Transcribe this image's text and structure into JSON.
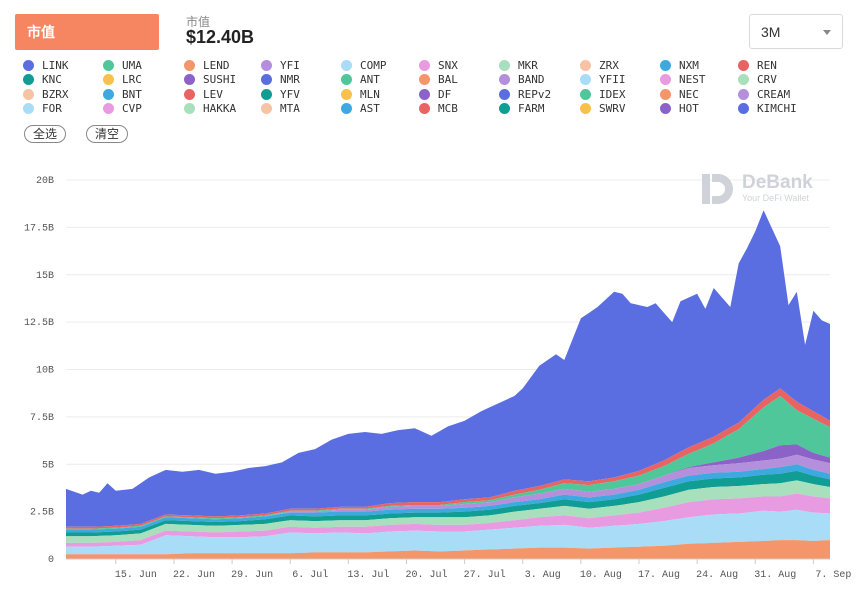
{
  "header": {
    "tab_label": "市值",
    "metric_label": "市值",
    "metric_value": "$12.40B",
    "range_value": "3M"
  },
  "buttons": {
    "select_all": "全选",
    "clear": "清空"
  },
  "watermark": {
    "title": "DeBank",
    "subtitle": "Your DeFi Wallet"
  },
  "legend": [
    {
      "name": "LINK",
      "color": "#5b6ee1"
    },
    {
      "name": "UMA",
      "color": "#4fc79b"
    },
    {
      "name": "LEND",
      "color": "#f4956a"
    },
    {
      "name": "YFI",
      "color": "#b48fdb"
    },
    {
      "name": "COMP",
      "color": "#a9dcf7"
    },
    {
      "name": "SNX",
      "color": "#e89be0"
    },
    {
      "name": "MKR",
      "color": "#a8dfbd"
    },
    {
      "name": "ZRX",
      "color": "#f6c3a4"
    },
    {
      "name": "NXM",
      "color": "#3ea9e0"
    },
    {
      "name": "REN",
      "color": "#e86462"
    },
    {
      "name": "KNC",
      "color": "#109d93"
    },
    {
      "name": "LRC",
      "color": "#f7c14a"
    },
    {
      "name": "SUSHI",
      "color": "#8b63c8"
    },
    {
      "name": "NMR",
      "color": "#5b6ee1"
    },
    {
      "name": "ANT",
      "color": "#4fc79b"
    },
    {
      "name": "BAL",
      "color": "#f4956a"
    },
    {
      "name": "BAND",
      "color": "#b48fdb"
    },
    {
      "name": "YFII",
      "color": "#a9dcf7"
    },
    {
      "name": "NEST",
      "color": "#e89be0"
    },
    {
      "name": "CRV",
      "color": "#a8dfbd"
    },
    {
      "name": "BZRX",
      "color": "#f6c3a4"
    },
    {
      "name": "BNT",
      "color": "#3ea9e0"
    },
    {
      "name": "LEV",
      "color": "#e86462"
    },
    {
      "name": "YFV",
      "color": "#109d93"
    },
    {
      "name": "MLN",
      "color": "#f7c14a"
    },
    {
      "name": "DF",
      "color": "#8b63c8"
    },
    {
      "name": "REPv2",
      "color": "#5b6ee1"
    },
    {
      "name": "IDEX",
      "color": "#4fc79b"
    },
    {
      "name": "NEC",
      "color": "#f4956a"
    },
    {
      "name": "CREAM",
      "color": "#b48fdb"
    },
    {
      "name": "FOR",
      "color": "#a9dcf7"
    },
    {
      "name": "CVP",
      "color": "#e89be0"
    },
    {
      "name": "HAKKA",
      "color": "#a8dfbd"
    },
    {
      "name": "MTA",
      "color": "#f6c3a4"
    },
    {
      "name": "AST",
      "color": "#3ea9e0"
    },
    {
      "name": "MCB",
      "color": "#e86462"
    },
    {
      "name": "FARM",
      "color": "#109d93"
    },
    {
      "name": "SWRV",
      "color": "#f7c14a"
    },
    {
      "name": "HOT",
      "color": "#8b63c8"
    },
    {
      "name": "KIMCHI",
      "color": "#5b6ee1"
    }
  ],
  "chart_data": {
    "type": "area",
    "stacked": true,
    "y_ticks": [
      "0",
      "2.5B",
      "5B",
      "7.5B",
      "10B",
      "12.5B",
      "15B",
      "17.5B",
      "20B"
    ],
    "ylim": [
      0,
      20
    ],
    "y_unit": "B",
    "x_ticks": [
      "15. Jun",
      "22. Jun",
      "29. Jun",
      "6. Jul",
      "13. Jul",
      "20. Jul",
      "27. Jul",
      "3. Aug",
      "10. Aug",
      "17. Aug",
      "24. Aug",
      "31. Aug",
      "7. Sep"
    ],
    "x_tick_days": [
      6,
      13,
      20,
      27,
      34,
      41,
      48,
      55,
      62,
      69,
      76,
      83,
      90
    ],
    "x_range_days": [
      0,
      92
    ],
    "x_start": "9. Jun",
    "total_days": [
      0,
      2,
      3,
      4,
      5,
      6,
      8,
      10,
      12,
      14,
      16,
      18,
      20,
      22,
      24,
      26,
      28,
      30,
      32,
      34,
      36,
      38,
      40,
      42,
      44,
      46,
      48,
      50,
      52,
      54,
      55,
      57,
      59,
      60,
      62,
      63,
      64,
      66,
      67,
      68,
      70,
      71,
      73,
      74,
      76,
      77,
      78,
      80,
      81,
      82,
      83,
      84,
      86,
      87,
      88,
      89,
      90,
      91,
      92
    ],
    "total": [
      3.7,
      3.4,
      3.6,
      3.5,
      4.0,
      3.6,
      3.7,
      4.3,
      4.7,
      4.6,
      4.7,
      4.5,
      4.6,
      4.8,
      4.9,
      5.1,
      5.6,
      5.8,
      6.3,
      6.6,
      6.7,
      6.6,
      6.8,
      6.9,
      6.5,
      7.0,
      7.3,
      7.8,
      8.2,
      8.6,
      9.0,
      10.2,
      10.8,
      10.5,
      12.7,
      13.0,
      13.3,
      14.1,
      14.0,
      13.5,
      13.3,
      13.5,
      12.5,
      13.6,
      14.0,
      13.2,
      14.3,
      13.3,
      15.6,
      16.4,
      17.3,
      18.4,
      16.5,
      13.4,
      14.1,
      11.3,
      13.1,
      12.6,
      12.4
    ],
    "series": [
      {
        "name": "BAL",
        "color": "#f4956a",
        "values": [
          0.25,
          0.25,
          0.25,
          0.25,
          0.25,
          0.3,
          0.3,
          0.3,
          0.3,
          0.3,
          0.35,
          0.35,
          0.35,
          0.4,
          0.45,
          0.4,
          0.45,
          0.5,
          0.55,
          0.6,
          0.6,
          0.55,
          0.6,
          0.65,
          0.7,
          0.8,
          0.85,
          0.9,
          0.95,
          1.0,
          1.0,
          0.95,
          1.0
        ]
      },
      {
        "name": "COMP",
        "color": "#a9dcf7",
        "values": [
          0.4,
          0.4,
          0.45,
          0.5,
          1.0,
          0.9,
          0.85,
          0.85,
          0.9,
          1.1,
          1.0,
          1.05,
          1.0,
          1.05,
          1.05,
          1.05,
          1.0,
          1.05,
          1.1,
          1.15,
          1.2,
          1.1,
          1.15,
          1.2,
          1.3,
          1.4,
          1.5,
          1.5,
          1.6,
          1.5,
          1.6,
          1.5,
          1.4
        ]
      },
      {
        "name": "SNX",
        "color": "#e89be0",
        "values": [
          0.2,
          0.2,
          0.2,
          0.25,
          0.25,
          0.25,
          0.25,
          0.3,
          0.3,
          0.3,
          0.3,
          0.3,
          0.35,
          0.35,
          0.35,
          0.35,
          0.35,
          0.35,
          0.4,
          0.45,
          0.5,
          0.5,
          0.55,
          0.6,
          0.7,
          0.8,
          0.8,
          0.8,
          0.75,
          0.8,
          0.85,
          0.85,
          0.8
        ]
      },
      {
        "name": "MKR",
        "color": "#a8dfbd",
        "values": [
          0.35,
          0.35,
          0.35,
          0.35,
          0.35,
          0.35,
          0.35,
          0.35,
          0.35,
          0.35,
          0.35,
          0.35,
          0.35,
          0.35,
          0.35,
          0.4,
          0.4,
          0.4,
          0.45,
          0.45,
          0.5,
          0.5,
          0.5,
          0.55,
          0.6,
          0.65,
          0.65,
          0.65,
          0.65,
          0.7,
          0.7,
          0.65,
          0.6
        ]
      },
      {
        "name": "KNC",
        "color": "#109d93",
        "values": [
          0.2,
          0.2,
          0.2,
          0.2,
          0.2,
          0.2,
          0.2,
          0.2,
          0.25,
          0.25,
          0.25,
          0.25,
          0.25,
          0.25,
          0.25,
          0.25,
          0.3,
          0.3,
          0.3,
          0.3,
          0.35,
          0.35,
          0.35,
          0.4,
          0.45,
          0.45,
          0.45,
          0.45,
          0.5,
          0.5,
          0.5,
          0.45,
          0.4
        ]
      },
      {
        "name": "NXM",
        "color": "#3ea9e0",
        "values": [
          0.15,
          0.15,
          0.15,
          0.15,
          0.15,
          0.15,
          0.15,
          0.15,
          0.15,
          0.15,
          0.2,
          0.2,
          0.2,
          0.2,
          0.2,
          0.2,
          0.2,
          0.2,
          0.2,
          0.2,
          0.25,
          0.25,
          0.25,
          0.25,
          0.3,
          0.3,
          0.3,
          0.3,
          0.3,
          0.35,
          0.35,
          0.3,
          0.3
        ]
      },
      {
        "name": "YFI",
        "color": "#b48fdb",
        "values": [
          0.0,
          0.0,
          0.0,
          0.0,
          0.0,
          0.0,
          0.0,
          0.0,
          0.0,
          0.05,
          0.05,
          0.1,
          0.1,
          0.15,
          0.15,
          0.15,
          0.2,
          0.2,
          0.25,
          0.3,
          0.3,
          0.3,
          0.3,
          0.3,
          0.35,
          0.4,
          0.4,
          0.45,
          0.45,
          0.45,
          0.5,
          0.55,
          0.55
        ]
      },
      {
        "name": "SUSHI",
        "color": "#8b63c8",
        "values": [
          0.0,
          0.0,
          0.0,
          0.0,
          0.0,
          0.0,
          0.0,
          0.0,
          0.0,
          0.0,
          0.0,
          0.0,
          0.0,
          0.0,
          0.0,
          0.0,
          0.0,
          0.0,
          0.0,
          0.0,
          0.0,
          0.0,
          0.0,
          0.0,
          0.0,
          0.05,
          0.15,
          0.3,
          0.5,
          0.7,
          0.55,
          0.35,
          0.3
        ]
      },
      {
        "name": "UMA",
        "color": "#4fc79b",
        "values": [
          0.05,
          0.05,
          0.05,
          0.05,
          0.05,
          0.05,
          0.05,
          0.05,
          0.05,
          0.05,
          0.05,
          0.05,
          0.05,
          0.05,
          0.05,
          0.05,
          0.1,
          0.1,
          0.15,
          0.2,
          0.3,
          0.35,
          0.4,
          0.45,
          0.5,
          0.7,
          1.0,
          1.5,
          2.3,
          2.6,
          1.8,
          1.8,
          1.6
        ]
      },
      {
        "name": "LEND",
        "color": "#e86462",
        "values": [
          0.1,
          0.1,
          0.1,
          0.1,
          0.1,
          0.1,
          0.1,
          0.1,
          0.1,
          0.1,
          0.1,
          0.1,
          0.1,
          0.15,
          0.15,
          0.15,
          0.15,
          0.15,
          0.2,
          0.2,
          0.2,
          0.2,
          0.2,
          0.25,
          0.3,
          0.35,
          0.35,
          0.35,
          0.4,
          0.4,
          0.45,
          0.4,
          0.35
        ]
      }
    ],
    "series_days": [
      0,
      3,
      6,
      9,
      12,
      15,
      18,
      21,
      24,
      27,
      30,
      33,
      36,
      39,
      42,
      45,
      48,
      51,
      54,
      57,
      60,
      63,
      66,
      69,
      72,
      75,
      78,
      81,
      84,
      86,
      88,
      90,
      92
    ],
    "top_series": {
      "name": "LINK",
      "color": "#5b6ee1"
    }
  }
}
